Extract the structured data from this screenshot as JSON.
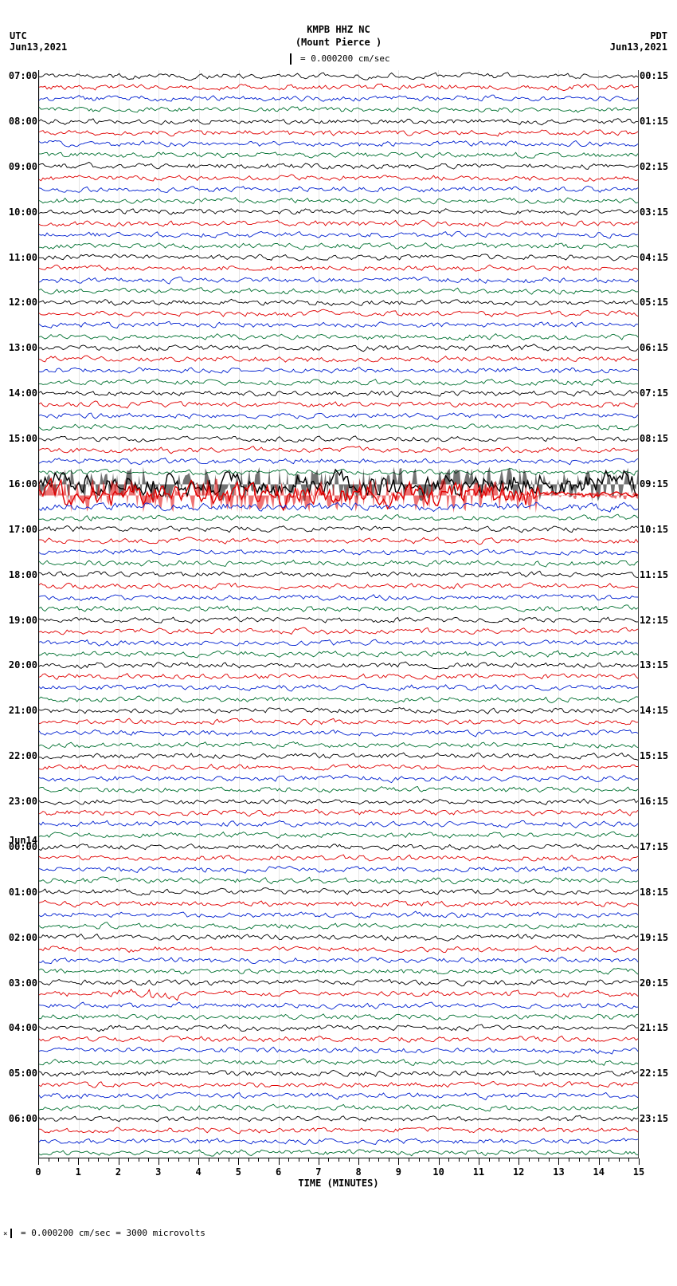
{
  "header": {
    "station": "KMPB HHZ NC",
    "location": "(Mount Pierce )",
    "scale_text": " = 0.000200 cm/sec"
  },
  "tz_left": "UTC",
  "tz_right": "PDT",
  "date_left": "Jun13,2021",
  "date_right": "Jun13,2021",
  "date_mark": "Jun14",
  "xaxis": {
    "label": "TIME (MINUTES)",
    "min": 0,
    "max": 15,
    "major_ticks": [
      0,
      1,
      2,
      3,
      4,
      5,
      6,
      7,
      8,
      9,
      10,
      11,
      12,
      13,
      14,
      15
    ],
    "minor_per_major": 4
  },
  "footer": "  = 0.000200 cm/sec =   3000 microvolts",
  "plot": {
    "trace_colors": [
      "#000000",
      "#e00000",
      "#0020d0",
      "#007030"
    ],
    "background_color": "#ffffff",
    "grid_color": "#c0c0c0",
    "hours_utc": [
      7,
      8,
      9,
      10,
      11,
      12,
      13,
      14,
      15,
      16,
      17,
      18,
      19,
      20,
      21,
      22,
      23,
      0,
      1,
      2,
      3,
      4,
      5,
      6
    ],
    "hours_pdt_right": [
      "00:15",
      "01:15",
      "02:15",
      "03:15",
      "04:15",
      "05:15",
      "06:15",
      "07:15",
      "08:15",
      "09:15",
      "10:15",
      "11:15",
      "12:15",
      "13:15",
      "14:15",
      "15:15",
      "16:15",
      "17:15",
      "18:15",
      "19:15",
      "20:15",
      "21:15",
      "22:15",
      "23:15"
    ],
    "lines_per_hour": 4,
    "amplitude_base": 5,
    "event": {
      "hour_index": 9,
      "start_minute": 0,
      "end_minute": 12.5,
      "amplitude": 22
    },
    "small_event": {
      "hour_index": 20,
      "start_minute": 2.0,
      "end_minute": 3.5,
      "amplitude": 11
    },
    "seed": 42
  }
}
